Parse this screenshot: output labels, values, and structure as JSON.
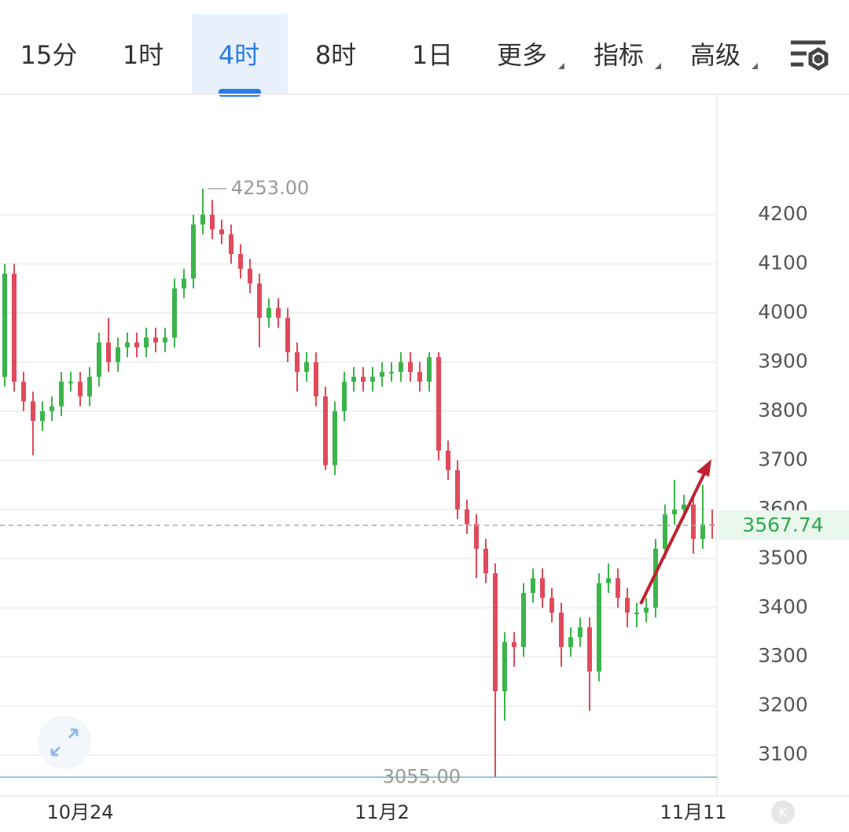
{
  "toolbar": {
    "tabs": [
      "15分",
      "1时",
      "4时",
      "8时",
      "1日",
      "更多",
      "指标",
      "高级"
    ],
    "active": "4时"
  },
  "k_button": "K",
  "chart_data": {
    "type": "candlestick",
    "categories": [
      null,
      null,
      null,
      null,
      null,
      null,
      null,
      null,
      "10月24",
      null,
      null,
      null,
      null,
      null,
      null,
      null,
      null,
      null,
      null,
      null,
      null,
      null,
      null,
      null,
      null,
      null,
      null,
      null,
      null,
      null,
      null,
      null,
      null,
      null,
      null,
      null,
      null,
      null,
      null,
      null,
      "11月2",
      null,
      null,
      null,
      null,
      null,
      null,
      null,
      null,
      null,
      null,
      null,
      null,
      null,
      null,
      null,
      null,
      null,
      null,
      null,
      null,
      null,
      null,
      null,
      null,
      null,
      null,
      null,
      null,
      null,
      null,
      null,
      null,
      "11月11",
      null,
      null
    ],
    "open": [
      3870,
      4080,
      3860,
      3820,
      3780,
      3800,
      3810,
      3860,
      3860,
      3830,
      3870,
      3940,
      3900,
      3930,
      3940,
      3930,
      3950,
      3940,
      3950,
      4050,
      4070,
      4180,
      4200,
      4170,
      4160,
      4120,
      4090,
      4060,
      3990,
      4010,
      3990,
      3920,
      3880,
      3900,
      3830,
      3690,
      3800,
      3860,
      3870,
      3860,
      3870,
      3880,
      3880,
      3900,
      3880,
      3860,
      3910,
      3720,
      3680,
      3600,
      3570,
      3520,
      3470,
      3230,
      3330,
      3320,
      3430,
      3460,
      3420,
      3390,
      3320,
      3340,
      3360,
      3270,
      3450,
      3460,
      3420,
      3390,
      3390,
      3400,
      3520,
      3590,
      3600,
      3610,
      3540,
      3570
    ],
    "high": [
      4100,
      4100,
      3880,
      3840,
      3820,
      3830,
      3880,
      3880,
      3880,
      3890,
      3960,
      3990,
      3950,
      3960,
      3960,
      3970,
      3970,
      3970,
      4070,
      4090,
      4200,
      4253,
      4230,
      4190,
      4180,
      4140,
      4110,
      4080,
      4030,
      4030,
      4010,
      3940,
      3920,
      3920,
      3850,
      3820,
      3880,
      3890,
      3890,
      3890,
      3900,
      3900,
      3920,
      3920,
      3900,
      3920,
      3920,
      3740,
      3700,
      3620,
      3590,
      3540,
      3490,
      3350,
      3350,
      3450,
      3480,
      3480,
      3440,
      3410,
      3360,
      3380,
      3380,
      3470,
      3490,
      3480,
      3440,
      3410,
      3420,
      3540,
      3610,
      3660,
      3630,
      3630,
      3650,
      3600
    ],
    "low": [
      3850,
      3840,
      3800,
      3710,
      3760,
      3780,
      3790,
      3840,
      3810,
      3810,
      3850,
      3880,
      3880,
      3910,
      3910,
      3910,
      3920,
      3920,
      3930,
      4030,
      4050,
      4160,
      4150,
      4140,
      4100,
      4070,
      4040,
      3930,
      3970,
      3970,
      3900,
      3840,
      3860,
      3810,
      3680,
      3670,
      3780,
      3840,
      3840,
      3840,
      3850,
      3860,
      3860,
      3860,
      3840,
      3840,
      3700,
      3660,
      3580,
      3550,
      3460,
      3450,
      3055,
      3170,
      3280,
      3300,
      3410,
      3400,
      3370,
      3280,
      3300,
      3320,
      3190,
      3250,
      3430,
      3400,
      3360,
      3360,
      3370,
      3380,
      3500,
      3570,
      3580,
      3510,
      3520,
      3540
    ],
    "close": [
      4080,
      3860,
      3820,
      3780,
      3800,
      3810,
      3860,
      3860,
      3830,
      3870,
      3940,
      3900,
      3930,
      3940,
      3930,
      3950,
      3940,
      3950,
      4050,
      4070,
      4180,
      4200,
      4170,
      4160,
      4120,
      4090,
      4060,
      3990,
      4010,
      3990,
      3920,
      3880,
      3900,
      3830,
      3690,
      3800,
      3860,
      3870,
      3860,
      3870,
      3880,
      3880,
      3900,
      3880,
      3860,
      3910,
      3720,
      3680,
      3600,
      3570,
      3520,
      3470,
      3230,
      3330,
      3320,
      3430,
      3460,
      3420,
      3390,
      3320,
      3340,
      3360,
      3270,
      3450,
      3460,
      3420,
      3390,
      3390,
      3400,
      3520,
      3590,
      3600,
      3610,
      3540,
      3570,
      3567.74
    ],
    "up_color": "#3bb54a",
    "down_color": "#e04a5a",
    "ylim": [
      3017,
      4445
    ],
    "yticks": [
      3100,
      3200,
      3300,
      3400,
      3500,
      3600,
      3700,
      3800,
      3900,
      4000,
      4100,
      4200
    ],
    "grid": true,
    "high_label": {
      "value": 4253,
      "label": "4253.00"
    },
    "low_label": {
      "value": 3055,
      "label": "3055.00"
    },
    "last_price": {
      "value": 3567.74,
      "label": "3567.74"
    }
  }
}
